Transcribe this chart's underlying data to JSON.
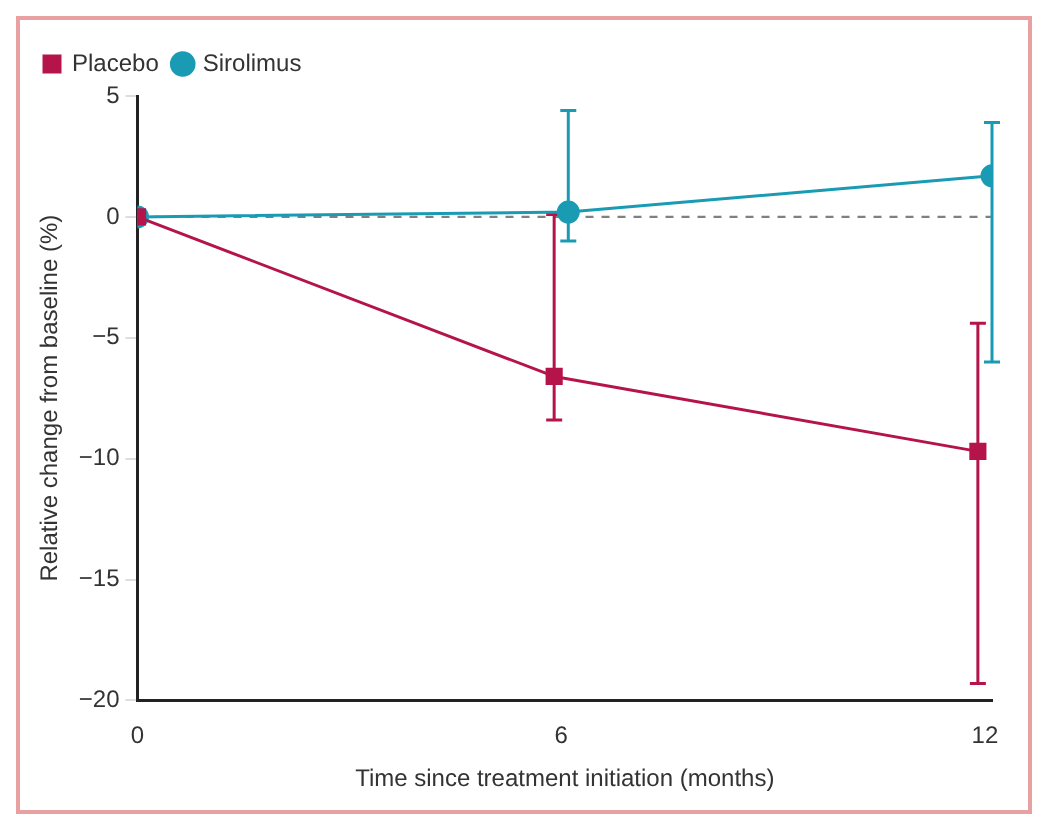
{
  "chart_data": {
    "type": "line",
    "xlabel": "Time since treatment initiation (months)",
    "ylabel": "Relative change from baseline (%)",
    "xlim": [
      0,
      12.1
    ],
    "xticks": [
      0,
      6,
      12
    ],
    "ylim": [
      -20,
      5
    ],
    "yticks": [
      -20,
      -15,
      -10,
      -5,
      0,
      5
    ],
    "grid": false,
    "legend": "top left",
    "series": [
      {
        "name": "Placebo",
        "color": "#b5144a",
        "marker": "square",
        "x": [
          0,
          5.9,
          11.9
        ],
        "values": [
          0,
          -6.6,
          -9.7
        ],
        "errors": [
          null,
          [
            -8.4,
            0.1
          ],
          [
            -19.3,
            -4.4
          ]
        ]
      },
      {
        "name": "Sirolimus",
        "color": "#1a9bb4",
        "marker": "circle",
        "x": [
          0,
          6.1,
          12.1
        ],
        "values": [
          0,
          0.2,
          1.7
        ],
        "errors": [
          null,
          [
            -1.0,
            4.4
          ],
          [
            -6.0,
            3.9
          ]
        ]
      }
    ],
    "ref_lines": [
      {
        "axis": "y",
        "value": 0,
        "color": "#808080",
        "line_style": "dashed"
      }
    ]
  }
}
